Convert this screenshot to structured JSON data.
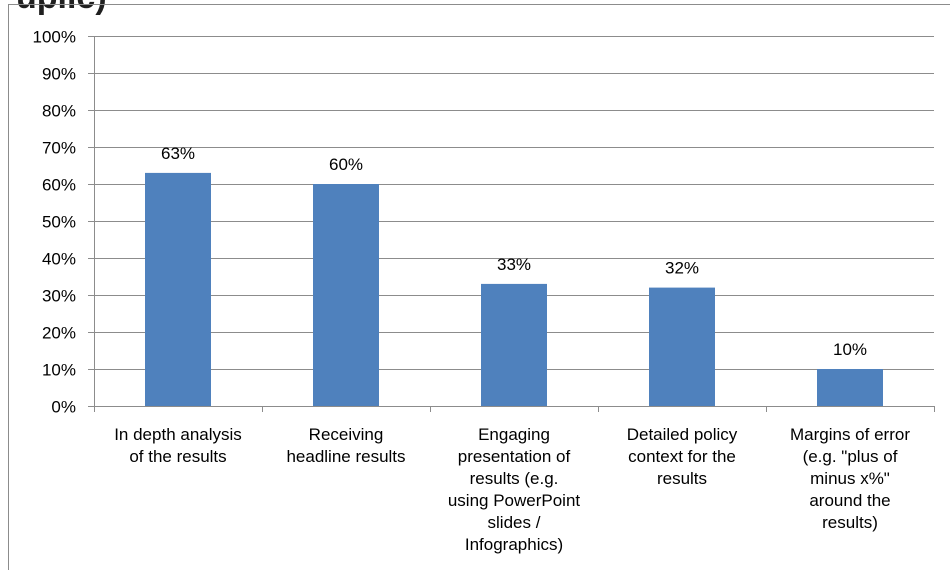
{
  "header": {
    "clipped_title": "uplic) "
  },
  "chart_data": {
    "type": "bar",
    "title": "",
    "xlabel": "",
    "ylabel": "",
    "ylim": [
      0,
      100
    ],
    "yticks": [
      0,
      10,
      20,
      30,
      40,
      50,
      60,
      70,
      80,
      90,
      100
    ],
    "ytick_labels": [
      "0%",
      "10%",
      "20%",
      "30%",
      "40%",
      "50%",
      "60%",
      "70%",
      "80%",
      "90%",
      "100%"
    ],
    "grid": true,
    "legend": "none",
    "categories": [
      [
        "In depth analysis",
        "of the results"
      ],
      [
        "Receiving",
        "headline results"
      ],
      [
        "Engaging",
        "presentation of",
        "results (e.g.",
        "using PowerPoint",
        "slides /",
        "Infographics)"
      ],
      [
        "Detailed policy",
        "context for the",
        "results"
      ],
      [
        "Margins of error",
        "(e.g. \"plus of",
        "minus x%\"",
        "around the",
        "results)"
      ]
    ],
    "values": [
      63,
      60,
      33,
      32,
      10
    ],
    "data_labels": [
      "63%",
      "60%",
      "33%",
      "32%",
      "10%"
    ],
    "colors": {
      "bar": "#4F81BD",
      "grid": "#8c8c8c",
      "axis": "#8c8c8c",
      "text": "#000000"
    }
  }
}
